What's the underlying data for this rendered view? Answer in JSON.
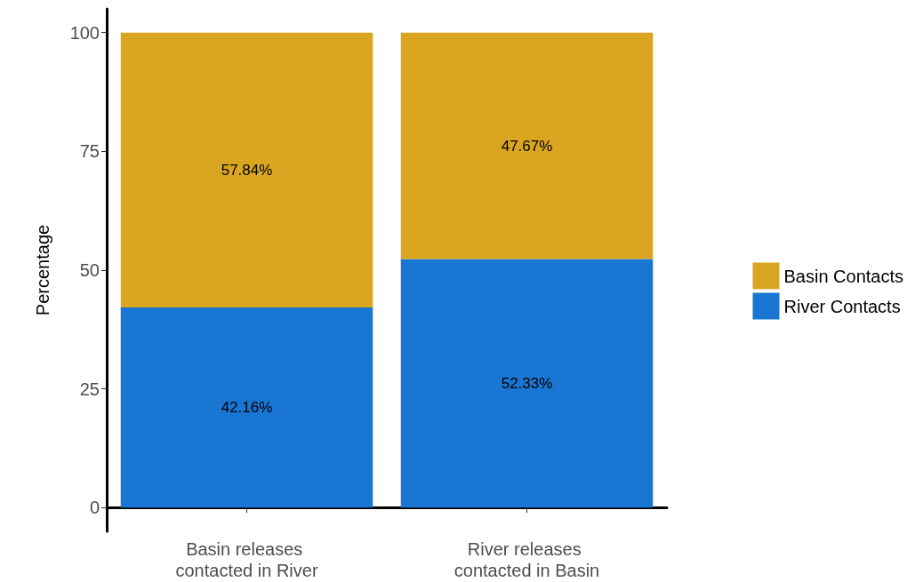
{
  "chart_data": {
    "type": "bar",
    "stacked": true,
    "ylabel": "Percentage",
    "categories": [
      "Basin releases contacted in River",
      "River releases contacted in Basin"
    ],
    "series": [
      {
        "name": "River Contacts",
        "color": "#1976d2",
        "values": [
          42.16,
          52.33
        ],
        "value_labels": [
          "42.16%",
          "52.33%"
        ]
      },
      {
        "name": "Basin Contacts",
        "color": "#daa520",
        "values": [
          57.84,
          47.67
        ],
        "value_labels": [
          "57.84%",
          "47.67%"
        ]
      }
    ],
    "ylim": [
      -5,
      105
    ],
    "yticks": [
      0,
      25,
      50,
      75,
      100
    ],
    "grid": false,
    "legend": "right"
  }
}
